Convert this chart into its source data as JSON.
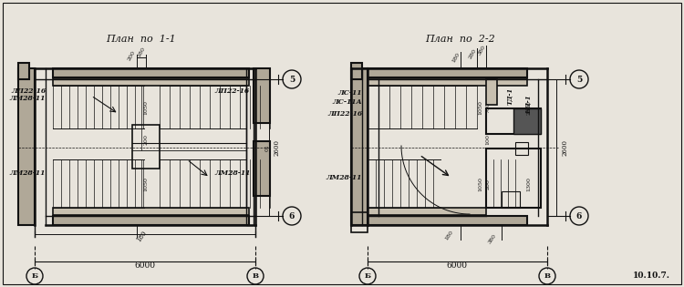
{
  "title1": "План  по  1-1",
  "title2": "План  по  2-2",
  "bg_color": "#e8e4dc",
  "line_color": "#111111",
  "stamp": "10.10.7.",
  "wall_fill": "#b0a898",
  "slab_fill": "#c8c0b0",
  "dark_fill": "#555555"
}
